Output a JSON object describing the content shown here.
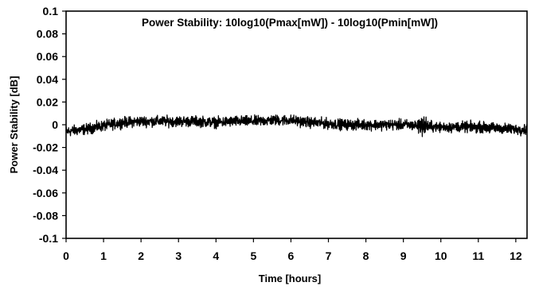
{
  "chart_data": {
    "type": "line",
    "annotation": "Power Stability: 10log10(Pmax[mW]) - 10log10(Pmin[mW])",
    "xlabel": "Time [hours]",
    "ylabel": "Power Stability [dB]",
    "xlim": [
      0,
      12.3
    ],
    "ylim": [
      -0.1,
      0.1
    ],
    "x_ticks": [
      0,
      1,
      2,
      3,
      4,
      5,
      6,
      7,
      8,
      9,
      10,
      11,
      12
    ],
    "y_ticks": [
      0.1,
      0.08,
      0.06,
      0.04,
      0.02,
      0,
      -0.02,
      -0.04,
      -0.06,
      -0.08,
      -0.1
    ],
    "x_tick_labels": [
      "0",
      "1",
      "2",
      "3",
      "4",
      "5",
      "6",
      "7",
      "8",
      "9",
      "10",
      "11",
      "12"
    ],
    "y_tick_labels": [
      "0.1",
      "0.08",
      "0.06",
      "0.04",
      "0.02",
      "0",
      "-0.02",
      "-0.04",
      "-0.06",
      "-0.08",
      "-0.1"
    ],
    "grid": false,
    "series": [
      {
        "color": "#000000",
        "x": [
          0,
          0.5,
          1,
          1.5,
          2,
          2.5,
          3,
          3.5,
          4,
          4.5,
          5,
          5.5,
          6,
          6.5,
          7,
          7.5,
          8,
          8.5,
          9,
          9.5,
          10,
          10.5,
          11,
          11.5,
          12,
          12.3
        ],
        "y": [
          -0.006,
          -0.004,
          -0.001,
          0.002,
          0.003,
          0.003,
          0.003,
          0.003,
          0.002,
          0.003,
          0.003,
          0.004,
          0.004,
          0.002,
          0.001,
          0.0,
          0.0,
          0.0,
          0.0,
          -0.001,
          -0.002,
          -0.002,
          -0.002,
          -0.003,
          -0.004,
          -0.004
        ]
      }
    ]
  }
}
